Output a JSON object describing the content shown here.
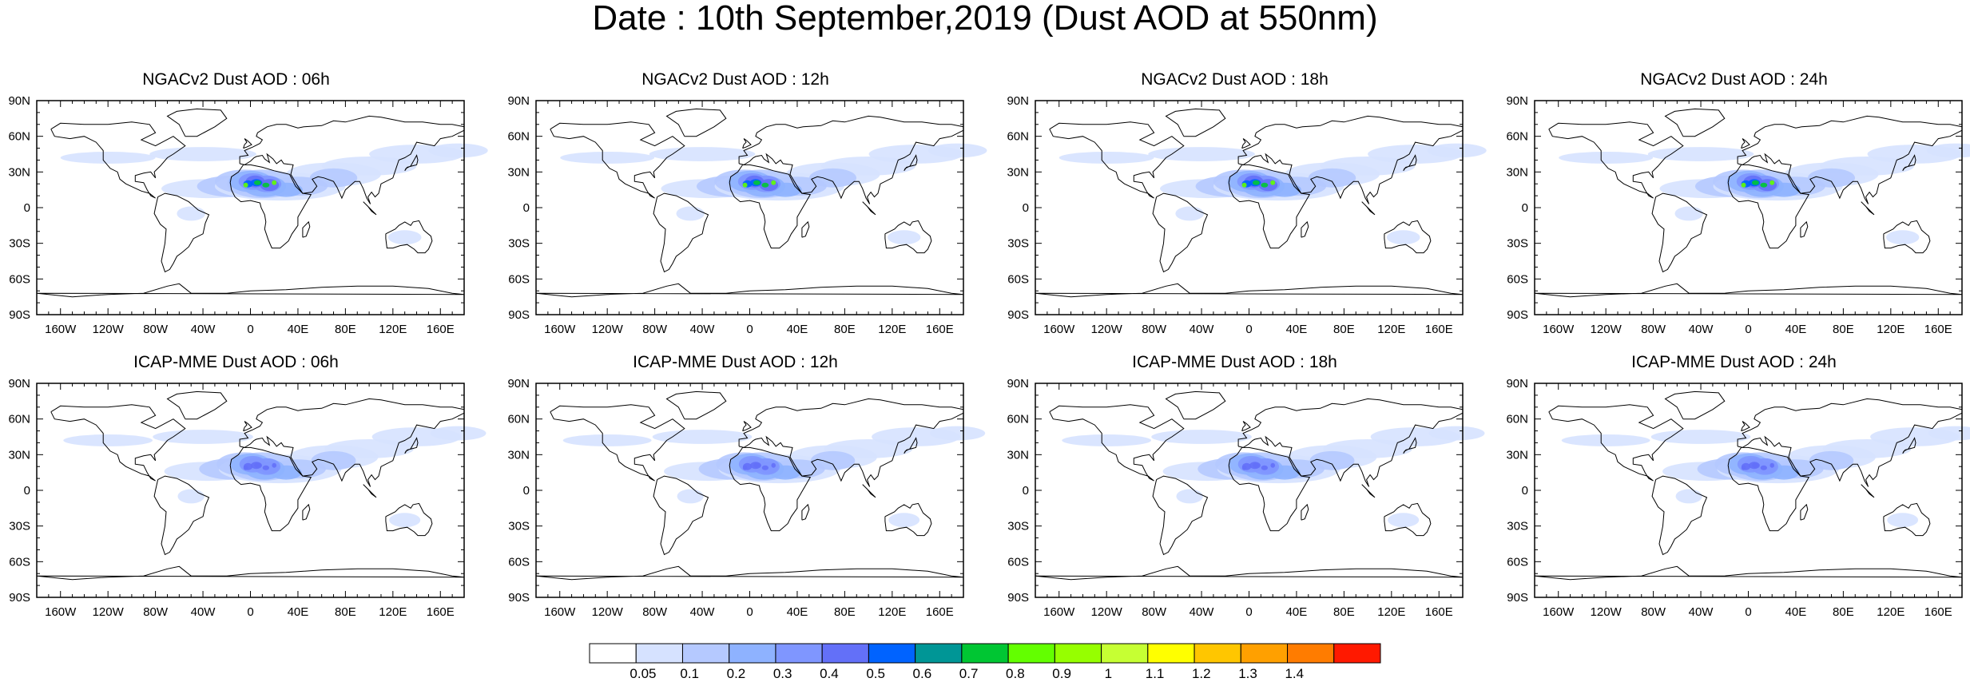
{
  "title": "Date : 10th September,2019 (Dust AOD at 550nm)",
  "axes": {
    "lat_labels": [
      "90N",
      "60N",
      "30N",
      "0",
      "30S",
      "60S",
      "90S"
    ],
    "lon_labels": [
      "160W",
      "120W",
      "80W",
      "40W",
      "0",
      "40E",
      "80E",
      "120E",
      "160E"
    ]
  },
  "panels": [
    {
      "title": "NGACv2 Dust AOD : 06h",
      "model": "NGACv2",
      "hour": "06h",
      "strength": 1.0
    },
    {
      "title": "NGACv2 Dust AOD : 12h",
      "model": "NGACv2",
      "hour": "12h",
      "strength": 0.95
    },
    {
      "title": "NGACv2 Dust AOD : 18h",
      "model": "NGACv2",
      "hour": "18h",
      "strength": 1.0
    },
    {
      "title": "NGACv2 Dust AOD : 24h",
      "model": "NGACv2",
      "hour": "24h",
      "strength": 0.95
    },
    {
      "title": "ICAP-MME Dust AOD : 06h",
      "model": "ICAP-MME",
      "hour": "06h",
      "strength": 0.6
    },
    {
      "title": "ICAP-MME Dust AOD : 12h",
      "model": "ICAP-MME",
      "hour": "12h",
      "strength": 0.55
    },
    {
      "title": "ICAP-MME Dust AOD : 18h",
      "model": "ICAP-MME",
      "hour": "18h",
      "strength": 0.6
    },
    {
      "title": "ICAP-MME Dust AOD : 24h",
      "model": "ICAP-MME",
      "hour": "24h",
      "strength": 0.55
    }
  ],
  "colorbar": {
    "labels": [
      "0.05",
      "0.1",
      "0.2",
      "0.3",
      "0.4",
      "0.5",
      "0.6",
      "0.7",
      "0.8",
      "0.9",
      "1",
      "1.1",
      "1.2",
      "1.3",
      "1.4"
    ],
    "colors": [
      "#ffffff",
      "#d6e2ff",
      "#b5c9ff",
      "#8eb2ff",
      "#7f96ff",
      "#6370f8",
      "#0063ff",
      "#009696",
      "#00c633",
      "#63ff00",
      "#96ff00",
      "#c6ff33",
      "#ffff00",
      "#ffc600",
      "#ffa000",
      "#ff7c00",
      "#ff1900"
    ]
  },
  "colors": {
    "coast": "#000000",
    "dust_levels": [
      "#d6e2ff",
      "#b5c9ff",
      "#8eb2ff",
      "#7f96ff",
      "#6370f8",
      "#0063ff",
      "#009696",
      "#00c633",
      "#63ff00"
    ]
  }
}
